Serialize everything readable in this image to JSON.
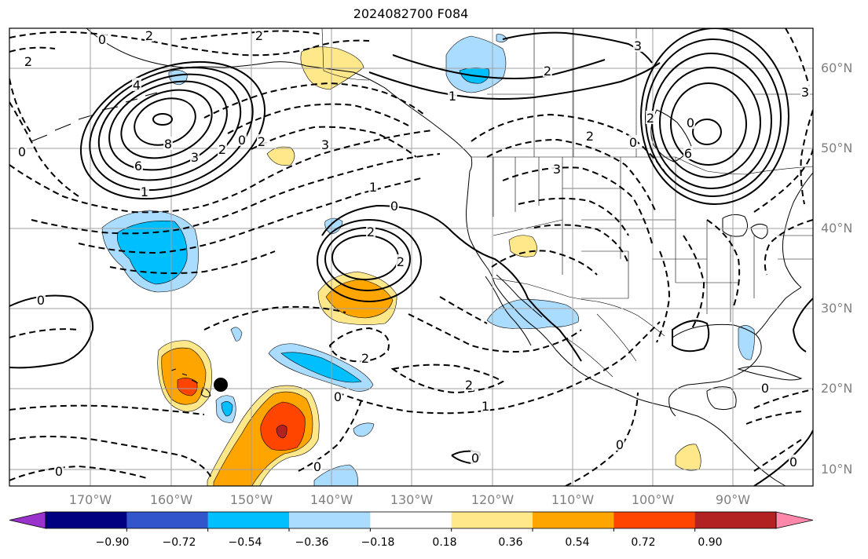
{
  "title": "2024082700 F084",
  "lat_labels": [
    "60°N",
    "50°N",
    "40°N",
    "30°N",
    "20°N",
    "10°N"
  ],
  "lon_labels": [
    "170°W",
    "160°W",
    "150°W",
    "140°W",
    "130°W",
    "120°W",
    "110°W",
    "100°W",
    "90°W"
  ],
  "colorbar": {
    "ticks": [
      "−0.90",
      "−0.72",
      "−0.54",
      "−0.36",
      "−0.18",
      "0.18",
      "0.36",
      "0.54",
      "0.72",
      "0.90"
    ],
    "colors": [
      "#9933cc",
      "#000080",
      "#3355cc",
      "#00bfff",
      "#aadcff",
      "#ffffff",
      "#ffe88a",
      "#ffa500",
      "#ff4500",
      "#b22222",
      "#ff88aa"
    ]
  },
  "contour_labels": [
    {
      "text": "0",
      "pos": [
        130,
        50
      ]
    },
    {
      "text": "2",
      "pos": [
        190,
        45
      ]
    },
    {
      "text": "2",
      "pos": [
        330,
        45
      ]
    },
    {
      "text": "2",
      "pos": [
        36,
        78
      ]
    },
    {
      "text": "4",
      "pos": [
        174,
        108
      ]
    },
    {
      "text": "8",
      "pos": [
        214,
        183
      ]
    },
    {
      "text": "6",
      "pos": [
        176,
        211
      ]
    },
    {
      "text": "1",
      "pos": [
        184,
        244
      ]
    },
    {
      "text": "3",
      "pos": [
        248,
        200
      ]
    },
    {
      "text": "2",
      "pos": [
        283,
        190
      ]
    },
    {
      "text": "0",
      "pos": [
        308,
        178
      ]
    },
    {
      "text": "2",
      "pos": [
        333,
        180
      ]
    },
    {
      "text": "0",
      "pos": [
        28,
        193
      ]
    },
    {
      "text": "3",
      "pos": [
        414,
        184
      ]
    },
    {
      "text": "1",
      "pos": [
        475,
        238
      ]
    },
    {
      "text": "0",
      "pos": [
        502,
        262
      ]
    },
    {
      "text": "2",
      "pos": [
        472,
        295
      ]
    },
    {
      "text": "2",
      "pos": [
        510,
        333
      ]
    },
    {
      "text": "0",
      "pos": [
        52,
        382
      ]
    },
    {
      "text": "2",
      "pos": [
        465,
        456
      ]
    },
    {
      "text": "0",
      "pos": [
        430,
        505
      ]
    },
    {
      "text": "2",
      "pos": [
        597,
        490
      ]
    },
    {
      "text": "1",
      "pos": [
        618,
        517
      ]
    },
    {
      "text": "0",
      "pos": [
        75,
        600
      ]
    },
    {
      "text": "0",
      "pos": [
        404,
        594
      ]
    },
    {
      "text": "0",
      "pos": [
        605,
        583
      ]
    },
    {
      "text": "0",
      "pos": [
        789,
        566
      ]
    },
    {
      "text": "1",
      "pos": [
        576,
        122
      ]
    },
    {
      "text": "2",
      "pos": [
        697,
        90
      ]
    },
    {
      "text": "3",
      "pos": [
        812,
        58
      ]
    },
    {
      "text": "2",
      "pos": [
        751,
        173
      ]
    },
    {
      "text": "3",
      "pos": [
        709,
        215
      ]
    },
    {
      "text": "0",
      "pos": [
        806,
        181
      ]
    },
    {
      "text": "2",
      "pos": [
        828,
        150
      ]
    },
    {
      "text": "0",
      "pos": [
        879,
        156
      ]
    },
    {
      "text": "6",
      "pos": [
        876,
        195
      ]
    },
    {
      "text": "3",
      "pos": [
        1025,
        117
      ]
    },
    {
      "text": "0",
      "pos": [
        974,
        494
      ]
    },
    {
      "text": "0",
      "pos": [
        1010,
        588
      ]
    }
  ]
}
